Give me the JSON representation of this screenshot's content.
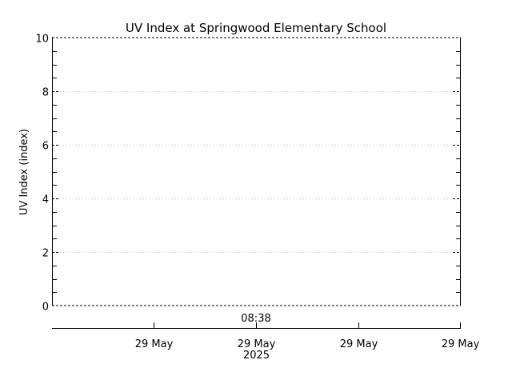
{
  "chart_data": {
    "type": "line",
    "title": "UV Index at Springwood Elementary School",
    "xlabel": "",
    "ylabel": "UV Index (index)",
    "ylim": [
      0,
      10
    ],
    "yticks": [
      0,
      2,
      4,
      6,
      8,
      10
    ],
    "yticklabels": [
      "0",
      "2",
      "4",
      "6",
      "8",
      "10"
    ],
    "y_minor_per_major": 4,
    "grid": {
      "y": true,
      "x": false,
      "style": "dotted"
    },
    "x_annotation": "08:38",
    "xtick_labels": [
      {
        "line1": "29 May",
        "line2": ""
      },
      {
        "line1": "29 May",
        "line2": "2025"
      },
      {
        "line1": "29 May",
        "line2": ""
      },
      {
        "line1": "29 May",
        "line2": ""
      }
    ],
    "series": [
      {
        "name": "UV Index",
        "x": [],
        "values": []
      }
    ],
    "legend": null
  }
}
